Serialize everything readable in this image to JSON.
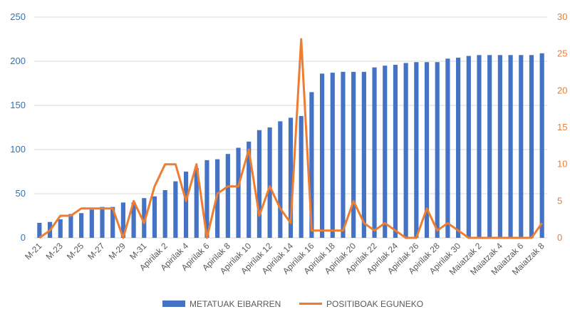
{
  "chart_data": {
    "type": "bar+line",
    "title": "",
    "categories": [
      "M-21",
      "M-22",
      "M-23",
      "M-24",
      "M-25",
      "M-26",
      "M-27",
      "M-28",
      "M-29",
      "M-30",
      "M-31",
      "Apirilak 1",
      "Apirilak 2",
      "Apirilak 3",
      "Apirilak 4",
      "Apirilak 5",
      "Apirilak 6",
      "Apirilak 7",
      "Apirilak 8",
      "Apirilak 9",
      "Apirilak 10",
      "Apirilak 11",
      "Apirilak 12",
      "Apirilak 13",
      "Apirilak 14",
      "Apirilak 15",
      "Apirilak 16",
      "Apirilak 17",
      "Apirilak 18",
      "Apirilak 19",
      "Apirilak 20",
      "Apirilak 21",
      "Apirilak 22",
      "Apirilak 23",
      "Apirilak 24",
      "Apirilak 25",
      "Apirilak 26",
      "Apirilak 27",
      "Apirilak 28",
      "Apirilak 29",
      "Apirilak 30",
      "Maiatzak 1",
      "Maiatzak 2",
      "Maiatzak 3",
      "Maiatzak 4",
      "Maiatzak 5",
      "Maiatzak 6",
      "Maiatzak 7",
      "Maiatzak 8"
    ],
    "x_tick_labels": [
      "M-21",
      "M-23",
      "M-25",
      "M-27",
      "M-29",
      "M-31",
      "Apirilak 2",
      "Apirilak 4",
      "Apirilak 6",
      "Apirilak 8",
      "Apirilak 10",
      "Apirilak 12",
      "Apirilak 14",
      "Apirilak 16",
      "Apirilak 18",
      "Apirilak 20",
      "Apirilak 22",
      "Apirilak 24",
      "Apirilak 26",
      "Apirilak 28",
      "Apirilak 30",
      "Maiatzak 2",
      "Maiatzak 4",
      "Maiatzak 6",
      "Maiatzak 8"
    ],
    "series": [
      {
        "name": "METATUAK EIBARREN",
        "type": "bar",
        "axis": "left",
        "color": "#4472c4",
        "values": [
          17,
          18,
          21,
          27,
          28,
          32,
          35,
          35,
          40,
          40,
          45,
          47,
          54,
          64,
          75,
          79,
          88,
          89,
          95,
          102,
          109,
          122,
          125,
          132,
          136,
          138,
          165,
          186,
          187,
          188,
          188,
          188,
          193,
          195,
          196,
          198,
          199,
          199,
          199,
          203,
          204,
          206,
          207,
          207,
          207,
          207,
          207,
          207,
          209
        ]
      },
      {
        "name": "POSITIBOAK EGUNEKO",
        "type": "line",
        "axis": "right",
        "color": "#ed7d31",
        "values": [
          0,
          1,
          3,
          3,
          4,
          4,
          4,
          4,
          0,
          5,
          2,
          7,
          10,
          10,
          5,
          10,
          0,
          6,
          7,
          7,
          12,
          3,
          7,
          4,
          2,
          27,
          1,
          1,
          1,
          1,
          5,
          2,
          1,
          2,
          1,
          0,
          0,
          4,
          1,
          2,
          1,
          0,
          0,
          0,
          0,
          0,
          0,
          0,
          2
        ]
      }
    ],
    "y_left": {
      "min": 0,
      "max": 250,
      "ticks": [
        "0",
        "50",
        "100",
        "150",
        "200",
        "250"
      ]
    },
    "y_right": {
      "min": 0,
      "max": 30,
      "ticks": [
        "0",
        "5",
        "10",
        "15",
        "20",
        "25",
        "30"
      ]
    },
    "grid": true,
    "legend_position": "bottom",
    "legend": {
      "bar_label": "METATUAK EIBARREN",
      "line_label": "POSITIBOAK EGUNEKO"
    }
  }
}
